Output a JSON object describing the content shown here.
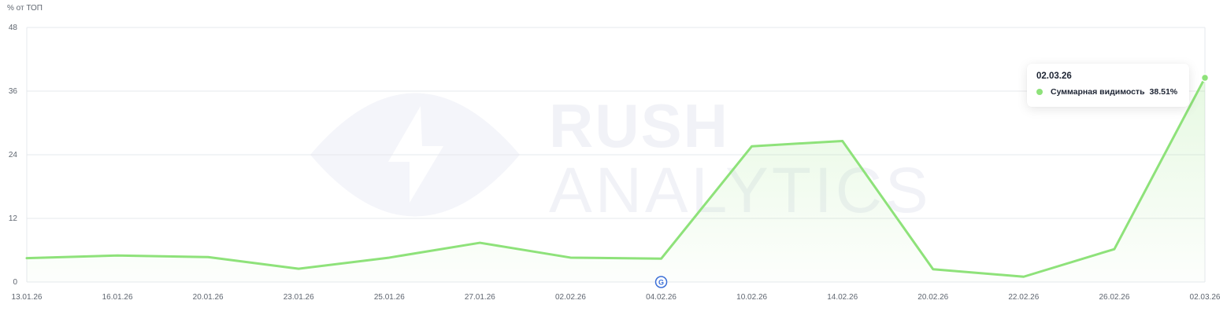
{
  "y_unit_label": "% от ТОП",
  "watermark": {
    "line1": "RUSH",
    "line2": "ANALYTICS"
  },
  "marker": {
    "letter": "G",
    "date": "04.02.26"
  },
  "tooltip": {
    "date": "02.03.26",
    "series_name": "Суммарная видимость",
    "value": "38.51%"
  },
  "colors": {
    "line": "#8ee27a",
    "grid": "#e6e8ec",
    "text": "#5f6670",
    "marker": "#3b6fd6"
  },
  "chart_data": {
    "type": "line",
    "x": [
      "13.01.26",
      "16.01.26",
      "20.01.26",
      "23.01.26",
      "25.01.26",
      "27.01.26",
      "02.02.26",
      "04.02.26",
      "10.02.26",
      "14.02.26",
      "20.02.26",
      "22.02.26",
      "26.02.26",
      "02.03.26"
    ],
    "series": [
      {
        "name": "Суммарная видимость",
        "values": [
          4.5,
          5.0,
          4.7,
          2.5,
          4.6,
          7.4,
          4.6,
          4.4,
          25.6,
          26.6,
          2.4,
          1.0,
          6.2,
          38.51
        ]
      }
    ],
    "y_ticks": [
      0,
      12,
      24,
      36,
      48
    ],
    "ylim": [
      0,
      48
    ],
    "ylabel": "% от ТОП",
    "xlabel": "",
    "title": "",
    "grid": true,
    "legend": "none"
  }
}
